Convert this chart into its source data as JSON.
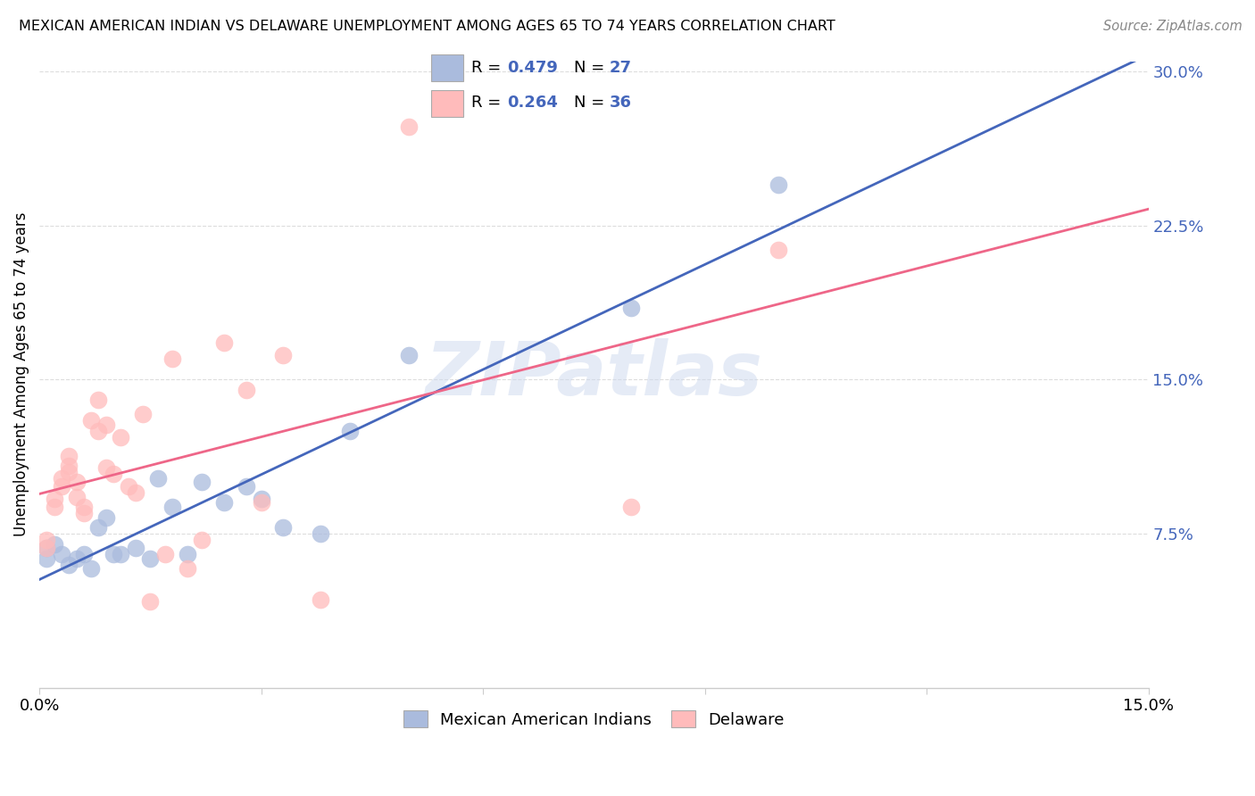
{
  "title": "MEXICAN AMERICAN INDIAN VS DELAWARE UNEMPLOYMENT AMONG AGES 65 TO 74 YEARS CORRELATION CHART",
  "source": "Source: ZipAtlas.com",
  "ylabel": "Unemployment Among Ages 65 to 74 years",
  "xmin": 0.0,
  "xmax": 0.15,
  "ymin": 0.0,
  "ymax": 0.305,
  "yticks": [
    0.0,
    0.075,
    0.15,
    0.225,
    0.3
  ],
  "ytick_labels_right": [
    "",
    "7.5%",
    "15.0%",
    "22.5%",
    "30.0%"
  ],
  "xticks": [
    0.0,
    0.03,
    0.06,
    0.09,
    0.12,
    0.15
  ],
  "xtick_labels": [
    "0.0%",
    "",
    "",
    "",
    "",
    "15.0%"
  ],
  "legend1_r": "0.479",
  "legend1_n": "27",
  "legend2_r": "0.264",
  "legend2_n": "36",
  "legend1_label": "Mexican American Indians",
  "legend2_label": "Delaware",
  "blue_color": "#aabbdd",
  "pink_color": "#ffbbbb",
  "line_blue": "#4466bb",
  "line_pink": "#ee6688",
  "label_color": "#4466bb",
  "watermark": "ZIPatlas",
  "blue_points_x": [
    0.001,
    0.001,
    0.002,
    0.003,
    0.004,
    0.005,
    0.006,
    0.007,
    0.008,
    0.009,
    0.01,
    0.011,
    0.013,
    0.015,
    0.016,
    0.018,
    0.02,
    0.022,
    0.025,
    0.028,
    0.03,
    0.033,
    0.038,
    0.042,
    0.05,
    0.08,
    0.1
  ],
  "blue_points_y": [
    0.063,
    0.068,
    0.07,
    0.065,
    0.06,
    0.063,
    0.065,
    0.058,
    0.078,
    0.083,
    0.065,
    0.065,
    0.068,
    0.063,
    0.102,
    0.088,
    0.065,
    0.1,
    0.09,
    0.098,
    0.092,
    0.078,
    0.075,
    0.125,
    0.162,
    0.185,
    0.245
  ],
  "pink_points_x": [
    0.001,
    0.001,
    0.002,
    0.002,
    0.003,
    0.003,
    0.004,
    0.004,
    0.004,
    0.005,
    0.005,
    0.006,
    0.006,
    0.007,
    0.008,
    0.008,
    0.009,
    0.009,
    0.01,
    0.011,
    0.012,
    0.013,
    0.014,
    0.015,
    0.017,
    0.018,
    0.02,
    0.022,
    0.025,
    0.028,
    0.03,
    0.033,
    0.038,
    0.05,
    0.08,
    0.1
  ],
  "pink_points_y": [
    0.072,
    0.068,
    0.092,
    0.088,
    0.098,
    0.102,
    0.108,
    0.113,
    0.105,
    0.1,
    0.093,
    0.088,
    0.085,
    0.13,
    0.125,
    0.14,
    0.107,
    0.128,
    0.104,
    0.122,
    0.098,
    0.095,
    0.133,
    0.042,
    0.065,
    0.16,
    0.058,
    0.072,
    0.168,
    0.145,
    0.09,
    0.162,
    0.043,
    0.273,
    0.088,
    0.213
  ]
}
